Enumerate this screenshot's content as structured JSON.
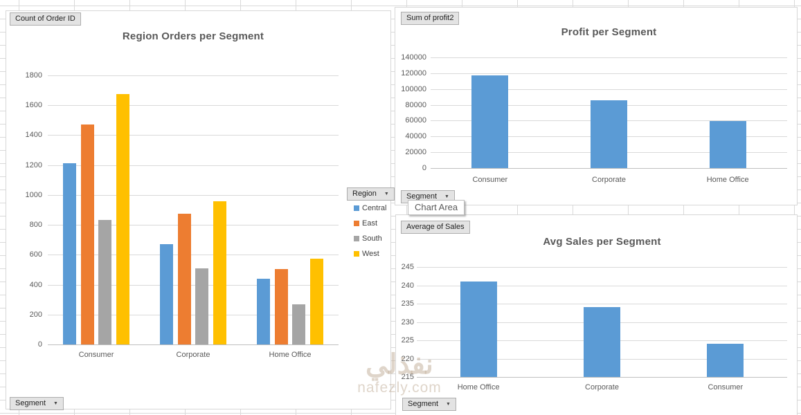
{
  "tooltip": {
    "label": "Chart Area"
  },
  "watermark": {
    "arabic": "نفذلي",
    "latin": "nafezly.com"
  },
  "colors": {
    "series_blue": "#5B9BD5",
    "series_orange": "#ED7D31",
    "series_gray": "#A5A5A5",
    "series_yellow": "#FFC000",
    "gridline": "#D9D9D9",
    "axis_line": "#BFBFBF",
    "axis_text": "#595959"
  },
  "chart_data": [
    {
      "id": "region-orders",
      "type": "bar",
      "title": "Region Orders per Segment",
      "value_field_button": "Count of Order ID",
      "axis_field_button": "Segment",
      "legend_field_button": "Region",
      "categories": [
        "Consumer",
        "Corporate",
        "Home Office"
      ],
      "series": [
        {
          "name": "Central",
          "color": "#5B9BD5",
          "values": [
            1212,
            672,
            438
          ]
        },
        {
          "name": "East",
          "color": "#ED7D31",
          "values": [
            1470,
            876,
            503
          ]
        },
        {
          "name": "South",
          "color": "#A5A5A5",
          "values": [
            835,
            510,
            270
          ]
        },
        {
          "name": "West",
          "color": "#FFC000",
          "values": [
            1675,
            960,
            573
          ]
        }
      ],
      "ylim": [
        0,
        1800
      ],
      "ytick_step": 200,
      "grid": true,
      "legend_position": "right"
    },
    {
      "id": "profit",
      "type": "bar",
      "title": "Profit per Segment",
      "value_field_button": "Sum of profit2",
      "axis_field_button": "Segment",
      "categories": [
        "Consumer",
        "Corporate",
        "Home Office"
      ],
      "series": [
        {
          "name": "Sum of profit2",
          "color": "#5B9BD5",
          "values": [
            117000,
            86000,
            59500
          ]
        }
      ],
      "ylim": [
        0,
        140000
      ],
      "ytick_step": 20000,
      "grid": true,
      "legend_position": "none"
    },
    {
      "id": "avg-sales",
      "type": "bar",
      "title": "Avg Sales per Segment",
      "value_field_button": "Average of Sales",
      "axis_field_button": "Segment",
      "categories": [
        "Home Office",
        "Corporate",
        "Consumer"
      ],
      "series": [
        {
          "name": "Average of Sales",
          "color": "#5B9BD5",
          "values": [
            241,
            234,
            224
          ]
        }
      ],
      "ylim": [
        215,
        245
      ],
      "ytick_step": 5,
      "grid": true,
      "legend_position": "none"
    }
  ]
}
